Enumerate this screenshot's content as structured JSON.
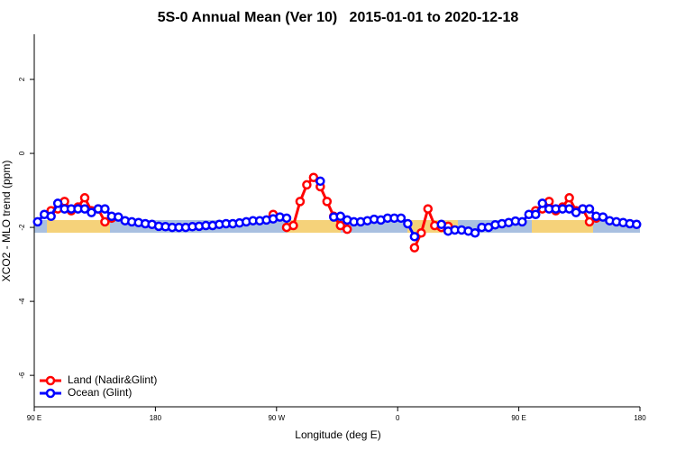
{
  "chart_data": {
    "type": "line",
    "title": "5S-0 Annual Mean (Ver 10)   2015-01-01 to 2020-12-18",
    "x_label": "Longitude (deg E)",
    "y_label": "XCO2 - MLO trend (ppm)",
    "xlim": [
      90,
      540
    ],
    "ylim": [
      -6.85,
      3.22
    ],
    "xticks": [
      {
        "value": 90,
        "label": "90 E"
      },
      180,
      {
        "value": 270,
        "label": "90 W"
      },
      {
        "value": 360,
        "label": "0"
      },
      {
        "value": 450,
        "label": "90 E"
      },
      {
        "value": 540,
        "label": "180"
      }
    ],
    "yticks": [
      -6,
      -4,
      -2,
      0,
      2
    ],
    "legend": "bottom-left",
    "x": [
      92.5,
      97.5,
      102.5,
      107.5,
      112.5,
      117.5,
      122.5,
      127.5,
      132.5,
      137.5,
      142.5,
      147.5,
      152.5,
      157.5,
      162.5,
      167.5,
      172.5,
      177.5,
      182.5,
      187.5,
      192.5,
      197.5,
      202.5,
      207.5,
      212.5,
      217.5,
      222.5,
      227.5,
      232.5,
      237.5,
      242.5,
      247.5,
      252.5,
      257.5,
      262.5,
      267.5,
      272.5,
      277.5,
      282.5,
      287.5,
      292.5,
      297.5,
      302.5,
      307.5,
      312.5,
      317.5,
      322.5,
      327.5,
      332.5,
      337.5,
      342.5,
      347.5,
      352.5,
      357.5,
      362.5,
      367.5,
      372.5,
      377.5,
      382.5,
      387.5,
      392.5,
      397.5,
      402.5,
      407.5,
      412.5,
      417.5,
      422.5,
      427.5,
      432.5,
      437.5,
      442.5,
      447.5,
      452.5,
      457.5,
      462.5,
      467.5,
      472.5,
      477.5,
      482.5,
      487.5,
      492.5,
      497.5,
      502.5,
      507.5,
      512.5,
      517.5,
      522.5,
      527.5,
      532.5,
      537.5
    ],
    "series": [
      {
        "name": "Land (Nadir&Glint)",
        "color": "#ff0000",
        "values": [
          null,
          null,
          -1.55,
          -1.5,
          -1.3,
          -1.55,
          -1.45,
          -1.2,
          -1.55,
          -1.5,
          -1.85,
          -1.75,
          null,
          null,
          null,
          null,
          null,
          null,
          null,
          null,
          null,
          null,
          null,
          null,
          null,
          null,
          null,
          null,
          null,
          null,
          null,
          null,
          null,
          null,
          null,
          -1.65,
          null,
          -2.0,
          -1.95,
          -1.3,
          -0.85,
          -0.65,
          -0.9,
          -1.3,
          -1.7,
          -1.95,
          -2.05,
          null,
          null,
          null,
          null,
          null,
          null,
          null,
          null,
          null,
          -2.55,
          -2.15,
          -1.5,
          -1.95,
          -2.0,
          -1.97,
          null,
          null,
          null,
          null,
          null,
          null,
          null,
          null,
          null,
          null,
          null,
          null,
          -1.55,
          -1.5,
          -1.3,
          -1.55,
          -1.45,
          -1.2,
          -1.55,
          -1.5,
          -1.85,
          -1.75,
          null,
          null,
          null,
          null,
          null,
          null
        ]
      },
      {
        "name": "Ocean (Glint)",
        "color": "#0000ff",
        "values": [
          -1.85,
          -1.65,
          -1.7,
          -1.35,
          -1.5,
          -1.5,
          -1.5,
          -1.5,
          -1.6,
          -1.5,
          -1.5,
          -1.7,
          -1.72,
          -1.82,
          -1.85,
          -1.87,
          -1.9,
          -1.92,
          -1.97,
          -1.98,
          -2.0,
          -2.0,
          -2.0,
          -1.98,
          -1.97,
          -1.95,
          -1.95,
          -1.92,
          -1.9,
          -1.9,
          -1.88,
          -1.85,
          -1.82,
          -1.82,
          -1.8,
          -1.77,
          -1.72,
          -1.75,
          null,
          null,
          null,
          null,
          -0.75,
          null,
          -1.72,
          -1.7,
          -1.8,
          -1.85,
          -1.85,
          -1.82,
          -1.78,
          -1.8,
          -1.75,
          -1.75,
          -1.75,
          -1.9,
          -2.25,
          null,
          null,
          null,
          -1.92,
          -2.1,
          -2.07,
          -2.07,
          -2.1,
          -2.15,
          -2.0,
          -2.0,
          -1.93,
          -1.9,
          -1.87,
          -1.83,
          -1.85,
          -1.65,
          -1.65,
          -1.35,
          -1.5,
          -1.5,
          -1.5,
          -1.5,
          -1.6,
          -1.5,
          -1.5,
          -1.7,
          -1.72,
          -1.82,
          -1.85,
          -1.87,
          -1.9,
          -1.92
        ]
      }
    ]
  }
}
